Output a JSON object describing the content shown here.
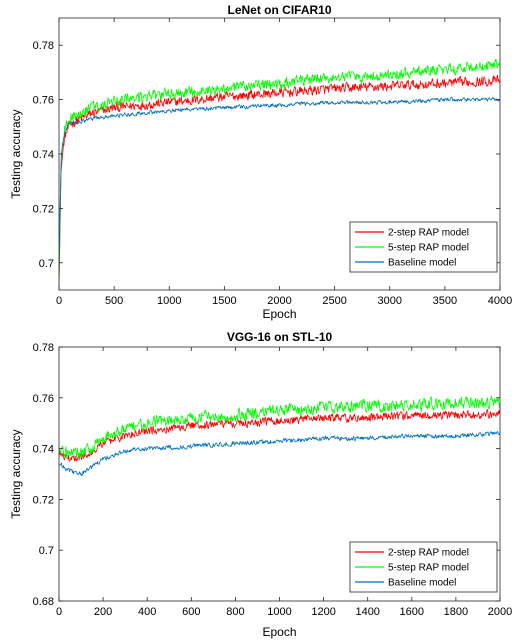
{
  "chart_data": [
    {
      "type": "line",
      "title": "LeNet on CIFAR10",
      "xlabel": "Epoch",
      "ylabel": "Testing accuracy",
      "xlim": [
        0,
        4000
      ],
      "ylim": [
        0.69,
        0.79
      ],
      "x_ticks": [
        0,
        500,
        1000,
        1500,
        2000,
        2500,
        3000,
        3500,
        4000
      ],
      "x_tick_labels": [
        "0",
        "500",
        "1000",
        "1500",
        "2000",
        "2500",
        "3000",
        "3500",
        "4000"
      ],
      "y_ticks": [
        0.7,
        0.72,
        0.74,
        0.76,
        0.78
      ],
      "y_tick_labels": [
        "0.7",
        "0.72",
        "0.74",
        "0.76",
        "0.78"
      ],
      "grid": false,
      "legend_position": "bottom-right",
      "series": [
        {
          "name": "2-step RAP model",
          "color": "#ff0000",
          "noise": 0.0025,
          "x": [
            0,
            20,
            50,
            100,
            200,
            300,
            500,
            750,
            1000,
            1500,
            2000,
            2500,
            3000,
            3500,
            4000
          ],
          "y": [
            0.693,
            0.735,
            0.746,
            0.751,
            0.753,
            0.755,
            0.757,
            0.758,
            0.759,
            0.761,
            0.7625,
            0.764,
            0.765,
            0.766,
            0.767
          ]
        },
        {
          "name": "5-step RAP model",
          "color": "#00ff00",
          "noise": 0.0028,
          "x": [
            0,
            20,
            50,
            100,
            200,
            300,
            500,
            750,
            1000,
            1500,
            2000,
            2500,
            3000,
            3500,
            4000
          ],
          "y": [
            0.693,
            0.738,
            0.749,
            0.753,
            0.755,
            0.757,
            0.759,
            0.761,
            0.762,
            0.764,
            0.766,
            0.768,
            0.769,
            0.771,
            0.773
          ]
        },
        {
          "name": "Baseline model",
          "color": "#0072bd",
          "noise": 0.001,
          "x": [
            0,
            20,
            50,
            100,
            200,
            300,
            500,
            750,
            1000,
            1500,
            2000,
            2500,
            3000,
            3500,
            4000
          ],
          "y": [
            0.7,
            0.74,
            0.748,
            0.751,
            0.752,
            0.753,
            0.754,
            0.755,
            0.756,
            0.757,
            0.758,
            0.759,
            0.759,
            0.76,
            0.76
          ]
        }
      ]
    },
    {
      "type": "line",
      "title": "VGG-16 on STL-10",
      "xlabel": "Epoch",
      "ylabel": "Testing accuracy",
      "xlim": [
        0,
        2000
      ],
      "ylim": [
        0.68,
        0.78
      ],
      "x_ticks": [
        0,
        200,
        400,
        600,
        800,
        1000,
        1200,
        1400,
        1600,
        1800,
        2000
      ],
      "x_tick_labels": [
        "0",
        "200",
        "400",
        "600",
        "800",
        "1000",
        "1200",
        "1400",
        "1600",
        "1800",
        "2000"
      ],
      "y_ticks": [
        0.68,
        0.7,
        0.72,
        0.74,
        0.76,
        0.78
      ],
      "y_tick_labels": [
        "0.68",
        "0.7",
        "0.72",
        "0.74",
        "0.76",
        "0.78"
      ],
      "grid": false,
      "legend_position": "bottom-right",
      "series": [
        {
          "name": "2-step RAP model",
          "color": "#ff0000",
          "noise": 0.0022,
          "x": [
            0,
            50,
            100,
            150,
            200,
            300,
            400,
            600,
            800,
            1000,
            1200,
            1400,
            1600,
            1800,
            2000
          ],
          "y": [
            0.738,
            0.736,
            0.737,
            0.739,
            0.742,
            0.745,
            0.747,
            0.749,
            0.75,
            0.751,
            0.752,
            0.752,
            0.753,
            0.753,
            0.754
          ]
        },
        {
          "name": "5-step RAP model",
          "color": "#00ff00",
          "noise": 0.0032,
          "x": [
            0,
            50,
            100,
            150,
            200,
            300,
            400,
            600,
            800,
            1000,
            1200,
            1400,
            1600,
            1800,
            2000
          ],
          "y": [
            0.74,
            0.738,
            0.738,
            0.74,
            0.744,
            0.748,
            0.75,
            0.752,
            0.753,
            0.755,
            0.756,
            0.757,
            0.757,
            0.758,
            0.758
          ]
        },
        {
          "name": "Baseline model",
          "color": "#0072bd",
          "noise": 0.0012,
          "x": [
            0,
            50,
            100,
            150,
            200,
            300,
            400,
            600,
            800,
            1000,
            1200,
            1400,
            1600,
            1800,
            2000
          ],
          "y": [
            0.734,
            0.731,
            0.73,
            0.733,
            0.736,
            0.739,
            0.74,
            0.741,
            0.742,
            0.743,
            0.744,
            0.744,
            0.745,
            0.745,
            0.746
          ]
        }
      ]
    }
  ]
}
